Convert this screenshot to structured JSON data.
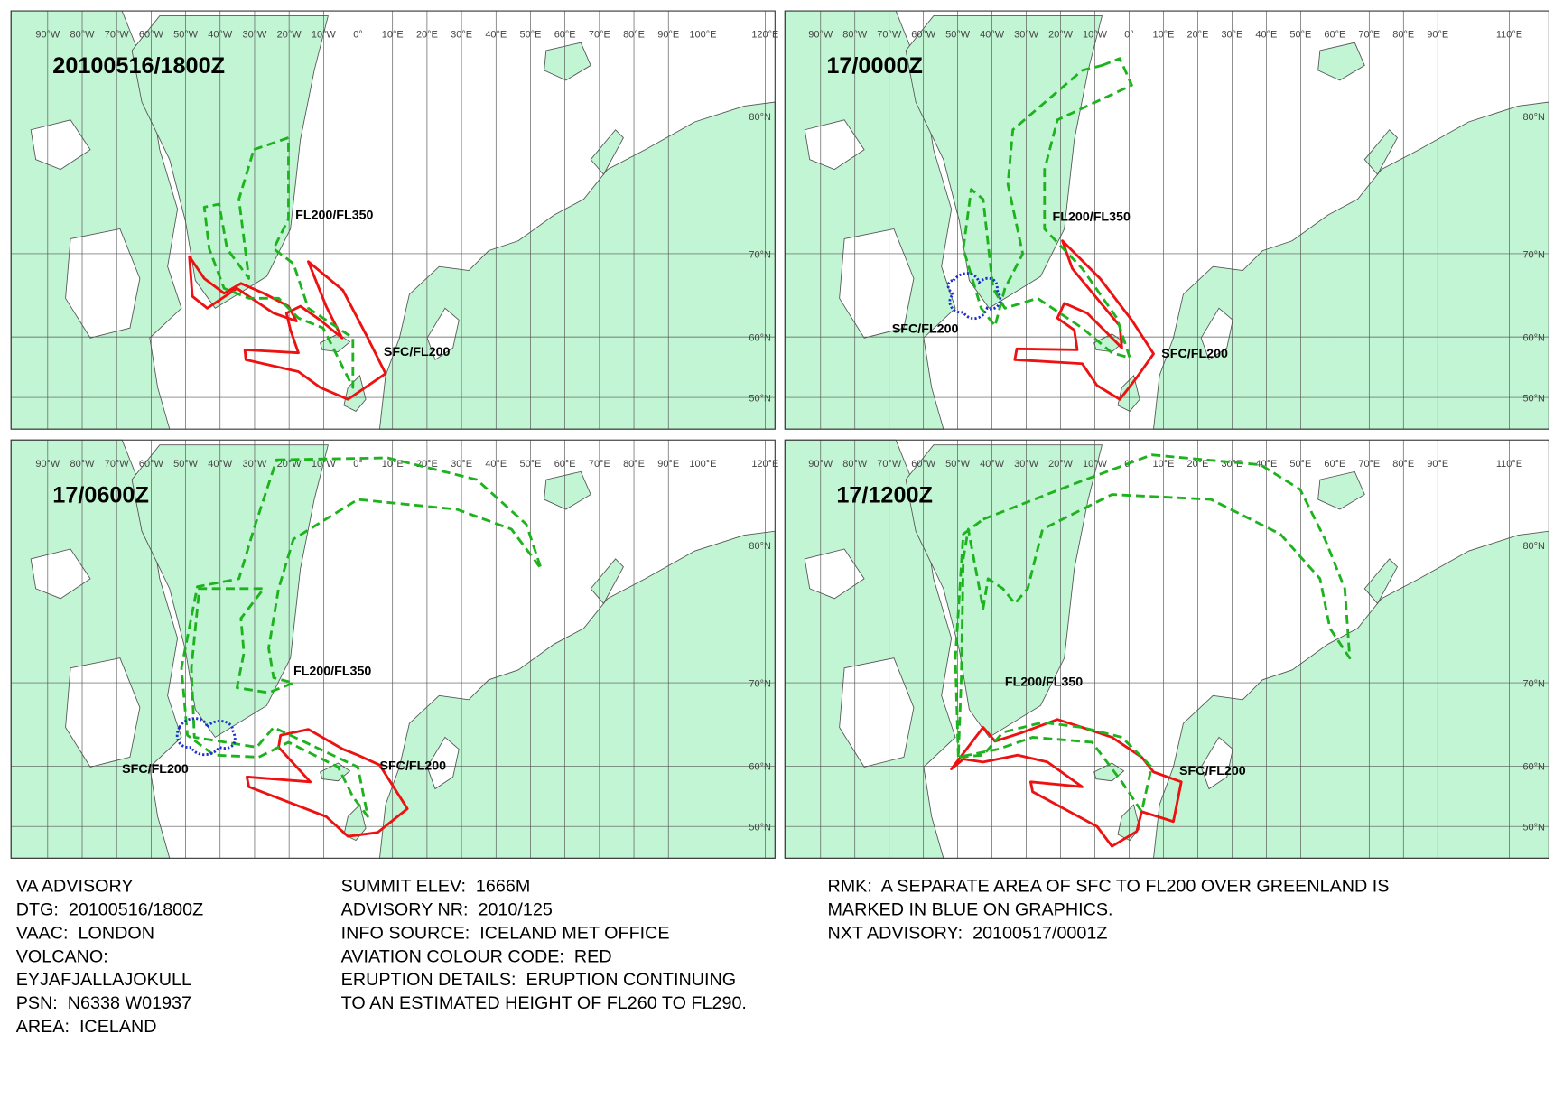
{
  "panels": [
    {
      "time": "20100516/1800Z",
      "lon_labels": [
        "90°W",
        "80°W",
        "70°W",
        "60°W",
        "50°W",
        "40°W",
        "30°W",
        "20°W",
        "10°W",
        "0°",
        "10°E",
        "20°E",
        "30°E",
        "40°E",
        "50°E",
        "60°E",
        "70°E",
        "80°E",
        "90°E",
        "100°E",
        "120°E"
      ],
      "lat_labels": [
        "80°N",
        "70°N",
        "60°N",
        "50°N"
      ],
      "level_labels": [
        "FL200/FL350",
        "SFC/FL200"
      ]
    },
    {
      "time": "17/0000Z",
      "lon_labels": [
        "90°W",
        "80°W",
        "70°W",
        "60°W",
        "50°W",
        "40°W",
        "30°W",
        "20°W",
        "10°W",
        "0°",
        "10°E",
        "20°E",
        "30°E",
        "40°E",
        "50°E",
        "60°E",
        "70°E",
        "80°E",
        "90°E",
        "110°E"
      ],
      "lat_labels": [
        "80°N",
        "70°N",
        "60°N",
        "50°N"
      ],
      "level_labels": [
        "FL200/FL350",
        "SFC/FL200",
        "SFC/FL200"
      ]
    },
    {
      "time": "17/0600Z",
      "lon_labels": [
        "90°W",
        "80°W",
        "70°W",
        "60°W",
        "50°W",
        "40°W",
        "30°W",
        "20°W",
        "10°W",
        "0°",
        "10°E",
        "20°E",
        "30°E",
        "40°E",
        "50°E",
        "60°E",
        "70°E",
        "80°E",
        "90°E",
        "100°E",
        "120°E"
      ],
      "lat_labels": [
        "80°N",
        "70°N",
        "60°N",
        "50°N"
      ],
      "level_labels": [
        "FL200/FL350",
        "SFC/FL200",
        "SFC/FL200"
      ]
    },
    {
      "time": "17/1200Z",
      "lon_labels": [
        "90°W",
        "80°W",
        "70°W",
        "60°W",
        "50°W",
        "40°W",
        "30°W",
        "20°W",
        "10°W",
        "0°",
        "10°E",
        "20°E",
        "30°E",
        "40°E",
        "50°E",
        "60°E",
        "70°E",
        "80°E",
        "90°E",
        "110°E"
      ],
      "lat_labels": [
        "80°N",
        "70°N",
        "60°N",
        "50°N"
      ],
      "level_labels": [
        "FL200/FL350",
        "SFC/FL200"
      ]
    }
  ],
  "advisory": {
    "col1": [
      "VA ADVISORY",
      "DTG:  20100516/1800Z",
      "VAAC:  LONDON",
      "VOLCANO:",
      "EYJAFJALLAJOKULL",
      "PSN:  N6338 W01937",
      "AREA:  ICELAND"
    ],
    "col2": [
      "SUMMIT ELEV:  1666M",
      "ADVISORY NR:  2010/125",
      "INFO SOURCE:  ICELAND MET OFFICE",
      "AVIATION COLOUR CODE:  RED",
      "ERUPTION DETAILS:  ERUPTION CONTINUING",
      "TO AN ESTIMATED HEIGHT OF FL260 TO FL290."
    ],
    "col3": [
      "RMK:  A SEPARATE AREA OF SFC TO FL200 OVER GREENLAND IS",
      "MARKED IN BLUE ON GRAPHICS.",
      "NXT ADVISORY:  20100517/0001Z"
    ]
  }
}
